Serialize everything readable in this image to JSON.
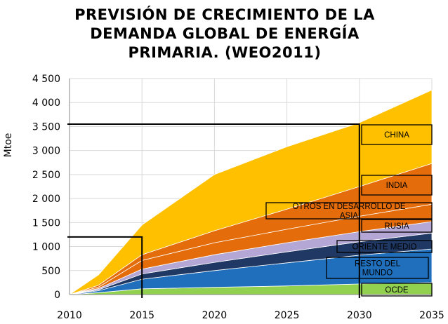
{
  "title": "PREVISIÓN DE CRECIMIENTO DE LA DEMANDA GLOBAL DE ENERGÍA PRIMARIA. (WEO2011)",
  "colors": {
    "OCDE": "#92d050",
    "RESTO DEL MUNDO": "#1f6fbd",
    "ORIENTE MEDIO": "#1f3864",
    "RUSIA": "#b4a7d6",
    "OTROS EN DESARROLLO DE ASIA": "#e46c0a",
    "INDIA": "#e46c0a",
    "CHINA": "#ffc000"
  },
  "chart_data": {
    "type": "area",
    "stacked": true,
    "title": "PREVISIÓN DE CRECIMIENTO DE LA DEMANDA GLOBAL DE ENERGÍA PRIMARIA. (WEO2011)",
    "xlabel": "",
    "ylabel": "Mtoe",
    "xlim": [
      2010,
      2035
    ],
    "ylim": [
      0,
      4500
    ],
    "x_ticks": [
      "2010",
      "2015",
      "2020",
      "2025",
      "2030",
      "2035"
    ],
    "y_ticks": [
      "0",
      "500",
      "1 000",
      "1 500",
      "2 000",
      "2 500",
      "3 000",
      "3 500",
      "4 000",
      "4 500"
    ],
    "grid": true,
    "x": [
      2010,
      2012,
      2015,
      2020,
      2025,
      2030,
      2035
    ],
    "series": [
      {
        "name": "OCDE",
        "values": [
          0,
          40,
          120,
          150,
          180,
          220,
          250
        ]
      },
      {
        "name": "RESTO DEL MUNDO",
        "values": [
          0,
          40,
          200,
          350,
          480,
          600,
          700
        ]
      },
      {
        "name": "ORIENTE MEDIO",
        "values": [
          0,
          20,
          110,
          170,
          230,
          280,
          330
        ]
      },
      {
        "name": "RUSIA",
        "values": [
          0,
          25,
          100,
          160,
          190,
          210,
          240
        ]
      },
      {
        "name": "OTROS EN DESARROLLO DE ASIA",
        "values": [
          0,
          30,
          180,
          250,
          280,
          320,
          360
        ]
      },
      {
        "name": "INDIA",
        "values": [
          0,
          40,
          120,
          250,
          420,
          620,
          850
        ]
      },
      {
        "name": "CHINA",
        "values": [
          0,
          215,
          620,
          1170,
          1300,
          1330,
          1530
        ]
      }
    ],
    "annotations": [
      {
        "text": "CHINA"
      },
      {
        "text": "INDIA"
      },
      {
        "text": "OTROS EN DESARROLLO DE ASIA"
      },
      {
        "text": "RUSIA"
      },
      {
        "text": "ORIENTE MEDIO"
      },
      {
        "text": "RESTO DEL MUNDO"
      },
      {
        "text": "OCDE"
      }
    ],
    "reference_lines": [
      {
        "x": 2015,
        "y": 1200
      },
      {
        "x": 2030,
        "y": 3550
      }
    ]
  }
}
